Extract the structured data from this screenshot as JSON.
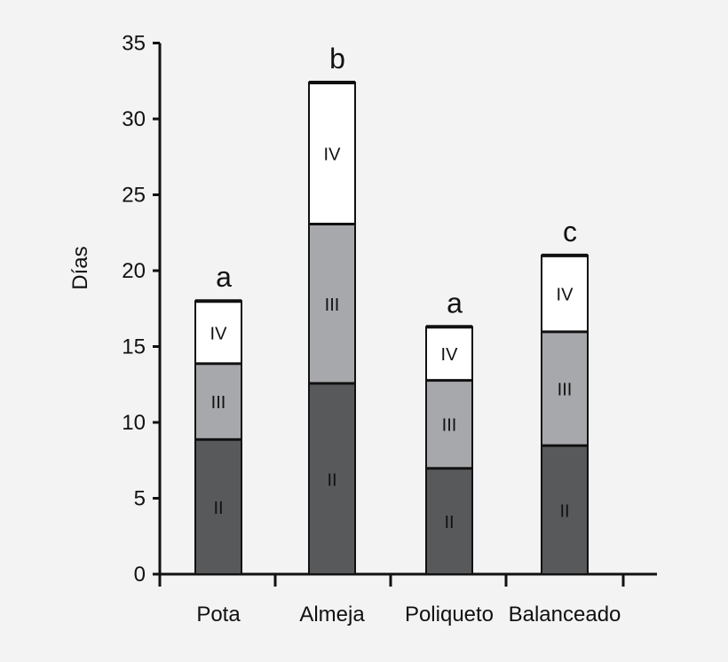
{
  "chart_data": {
    "type": "bar",
    "stacked": true,
    "ylabel": "Días",
    "xlabel": "",
    "ylim": [
      0,
      35
    ],
    "yticks": [
      0,
      5,
      10,
      15,
      20,
      25,
      30,
      35
    ],
    "grid": false,
    "categories": [
      "Pota",
      "Almeja",
      "Poliqueto",
      "Balanceado"
    ],
    "group_letters": [
      "a",
      "b",
      "a",
      "c"
    ],
    "series": [
      {
        "name": "II",
        "color": "#58595b",
        "values": [
          8.9,
          12.6,
          7.0,
          8.5
        ]
      },
      {
        "name": "III",
        "color": "#a7a8ab",
        "values": [
          5.0,
          10.5,
          5.8,
          7.5
        ]
      },
      {
        "name": "IV",
        "color": "#ffffff",
        "values": [
          4.1,
          9.3,
          3.5,
          5.0
        ]
      }
    ]
  }
}
